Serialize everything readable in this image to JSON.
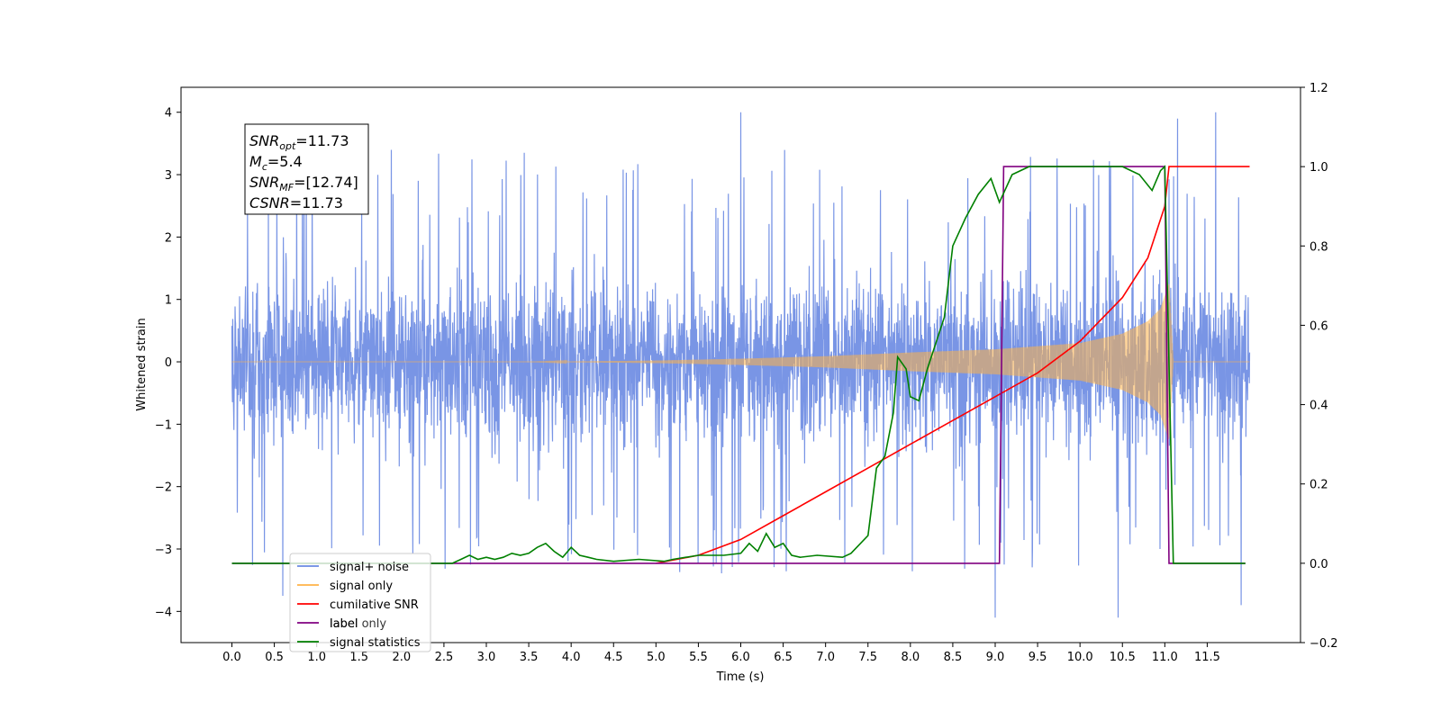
{
  "chart_data": {
    "type": "line",
    "title": "",
    "xlabel": "Time (s)",
    "ylabel_left": "Whitened strain",
    "ylabel_right": "",
    "xlim": [
      -0.6,
      12.6
    ],
    "ylim_left": [
      -4.5,
      4.4
    ],
    "ylim_right": [
      -0.2,
      1.2
    ],
    "x_ticks": [
      0.0,
      0.5,
      1.0,
      1.5,
      2.0,
      2.5,
      3.0,
      3.5,
      4.0,
      4.5,
      5.0,
      5.5,
      6.0,
      6.5,
      7.0,
      7.5,
      8.0,
      8.5,
      9.0,
      9.5,
      10.0,
      10.5,
      11.0,
      11.5
    ],
    "x_tick_labels": [
      "0.0",
      "0.5",
      "1.0",
      "1.5",
      "2.0",
      "2.5",
      "3.0",
      "3.5",
      "4.0",
      "4.5",
      "5.0",
      "5.5",
      "6.0",
      "6.5",
      "7.0",
      "7.5",
      "8.0",
      "8.5",
      "9.0",
      "9.5",
      "10.0",
      "10.5",
      "11.0",
      "11.5"
    ],
    "y_left_ticks": [
      -4,
      -3,
      -2,
      -1,
      0,
      1,
      2,
      3,
      4
    ],
    "y_left_tick_labels": [
      "−4",
      "−3",
      "−2",
      "−1",
      "0",
      "1",
      "2",
      "3",
      "4"
    ],
    "y_right_ticks": [
      -0.2,
      0.0,
      0.2,
      0.4,
      0.6,
      0.8,
      1.0,
      1.2
    ],
    "y_right_tick_labels": [
      "−0.2",
      "0.0",
      "0.2",
      "0.4",
      "0.6",
      "0.8",
      "1.0",
      "1.2"
    ],
    "grid": false,
    "legend_position": "lower-left",
    "annotation": [
      {
        "base": "SNR",
        "sub": "opt",
        "rest": "=11.73"
      },
      {
        "base": "M",
        "sub": "c",
        "rest": "=5.4"
      },
      {
        "base": "SNR",
        "sub": "MF",
        "rest": "=[12.74]"
      },
      {
        "base": "CSNR",
        "sub": "",
        "rest": "=11.73"
      }
    ],
    "series": [
      {
        "name": "signal+ noise",
        "color": "#6a89e2",
        "axis": "left",
        "kind": "noise",
        "x_range": [
          0.0,
          12.0
        ],
        "typical_range": [
          -1.5,
          1.5
        ],
        "peak_range": [
          -4.1,
          4.0
        ],
        "extremes": [
          {
            "x": 0.6,
            "y": -3.75
          },
          {
            "x": 0.85,
            "y": 3.7
          },
          {
            "x": 6.0,
            "y": 4.0
          },
          {
            "x": 9.0,
            "y": -4.1
          },
          {
            "x": 10.45,
            "y": -4.1
          },
          {
            "x": 11.15,
            "y": 3.9
          },
          {
            "x": 11.6,
            "y": 4.0
          },
          {
            "x": 11.9,
            "y": -3.9
          }
        ]
      },
      {
        "name": "signal only",
        "color": "#ffb347",
        "axis": "left",
        "kind": "chirp",
        "x_range": [
          0.0,
          12.0
        ],
        "onset": 3.5,
        "merger": 11.0,
        "envelope": [
          [
            3.5,
            0.0
          ],
          [
            5.0,
            0.02
          ],
          [
            6.0,
            0.05
          ],
          [
            7.0,
            0.09
          ],
          [
            8.0,
            0.15
          ],
          [
            9.0,
            0.2
          ],
          [
            10.0,
            0.3
          ],
          [
            10.5,
            0.45
          ],
          [
            10.8,
            0.65
          ],
          [
            10.95,
            0.85
          ],
          [
            11.05,
            1.25
          ],
          [
            11.1,
            0.0
          ]
        ]
      },
      {
        "name": "cumilative SNR",
        "color": "#ff0000",
        "axis": "right",
        "points": [
          [
            5.0,
            0.0
          ],
          [
            5.5,
            0.02
          ],
          [
            6.0,
            0.06
          ],
          [
            6.5,
            0.12
          ],
          [
            7.0,
            0.18
          ],
          [
            7.5,
            0.24
          ],
          [
            8.0,
            0.3
          ],
          [
            8.5,
            0.36
          ],
          [
            9.0,
            0.42
          ],
          [
            9.5,
            0.48
          ],
          [
            10.0,
            0.56
          ],
          [
            10.5,
            0.67
          ],
          [
            10.8,
            0.77
          ],
          [
            11.0,
            0.9
          ],
          [
            11.05,
            1.0
          ],
          [
            12.0,
            1.0
          ]
        ]
      },
      {
        "name": "label",
        "color": "#800080",
        "axis": "right",
        "points": [
          [
            0.0,
            0.0
          ],
          [
            9.05,
            0.0
          ],
          [
            9.1,
            1.0
          ],
          [
            11.0,
            1.0
          ],
          [
            11.05,
            0.0
          ],
          [
            11.95,
            0.0
          ]
        ]
      },
      {
        "name": "label only",
        "color": "#d3d3d3",
        "axis": "right",
        "points": []
      },
      {
        "name": "signal statistics",
        "color": "#008000",
        "axis": "right",
        "points": [
          [
            0.0,
            0.0
          ],
          [
            2.6,
            0.0
          ],
          [
            2.7,
            0.01
          ],
          [
            2.8,
            0.02
          ],
          [
            2.9,
            0.01
          ],
          [
            3.0,
            0.015
          ],
          [
            3.1,
            0.01
          ],
          [
            3.2,
            0.015
          ],
          [
            3.3,
            0.025
          ],
          [
            3.4,
            0.02
          ],
          [
            3.5,
            0.025
          ],
          [
            3.6,
            0.04
          ],
          [
            3.7,
            0.05
          ],
          [
            3.8,
            0.03
          ],
          [
            3.9,
            0.015
          ],
          [
            4.0,
            0.04
          ],
          [
            4.1,
            0.02
          ],
          [
            4.2,
            0.015
          ],
          [
            4.3,
            0.01
          ],
          [
            4.5,
            0.005
          ],
          [
            4.8,
            0.01
          ],
          [
            5.1,
            0.005
          ],
          [
            5.2,
            0.01
          ],
          [
            5.5,
            0.02
          ],
          [
            5.8,
            0.02
          ],
          [
            6.0,
            0.025
          ],
          [
            6.1,
            0.05
          ],
          [
            6.2,
            0.03
          ],
          [
            6.3,
            0.075
          ],
          [
            6.4,
            0.04
          ],
          [
            6.5,
            0.05
          ],
          [
            6.6,
            0.02
          ],
          [
            6.7,
            0.015
          ],
          [
            6.9,
            0.02
          ],
          [
            7.2,
            0.015
          ],
          [
            7.3,
            0.025
          ],
          [
            7.5,
            0.07
          ],
          [
            7.6,
            0.24
          ],
          [
            7.7,
            0.27
          ],
          [
            7.8,
            0.38
          ],
          [
            7.85,
            0.52
          ],
          [
            7.95,
            0.49
          ],
          [
            8.0,
            0.42
          ],
          [
            8.1,
            0.41
          ],
          [
            8.2,
            0.49
          ],
          [
            8.4,
            0.62
          ],
          [
            8.5,
            0.8
          ],
          [
            8.65,
            0.87
          ],
          [
            8.8,
            0.93
          ],
          [
            8.95,
            0.97
          ],
          [
            9.05,
            0.91
          ],
          [
            9.2,
            0.98
          ],
          [
            9.4,
            1.0
          ],
          [
            9.6,
            1.0
          ],
          [
            10.5,
            1.0
          ],
          [
            10.7,
            0.98
          ],
          [
            10.85,
            0.94
          ],
          [
            10.95,
            0.99
          ],
          [
            11.0,
            1.0
          ],
          [
            11.05,
            0.5
          ],
          [
            11.1,
            0.0
          ],
          [
            11.95,
            0.0
          ]
        ]
      }
    ]
  }
}
